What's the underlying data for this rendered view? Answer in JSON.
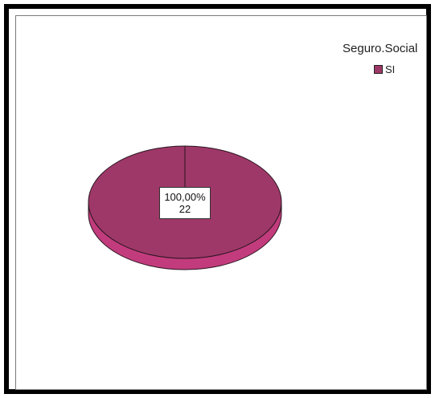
{
  "chart_data": {
    "type": "pie",
    "legend_title": "Seguro.Social",
    "legend_position": "top-right",
    "slices": [
      {
        "label": "SI",
        "value": 22,
        "percent_label": "100,00%",
        "count_label": "22",
        "color": "#9e3868"
      }
    ]
  },
  "colors": {
    "slice_top": "#9e3868",
    "slice_side": "#c23c7d",
    "outline": "#2a1520"
  }
}
